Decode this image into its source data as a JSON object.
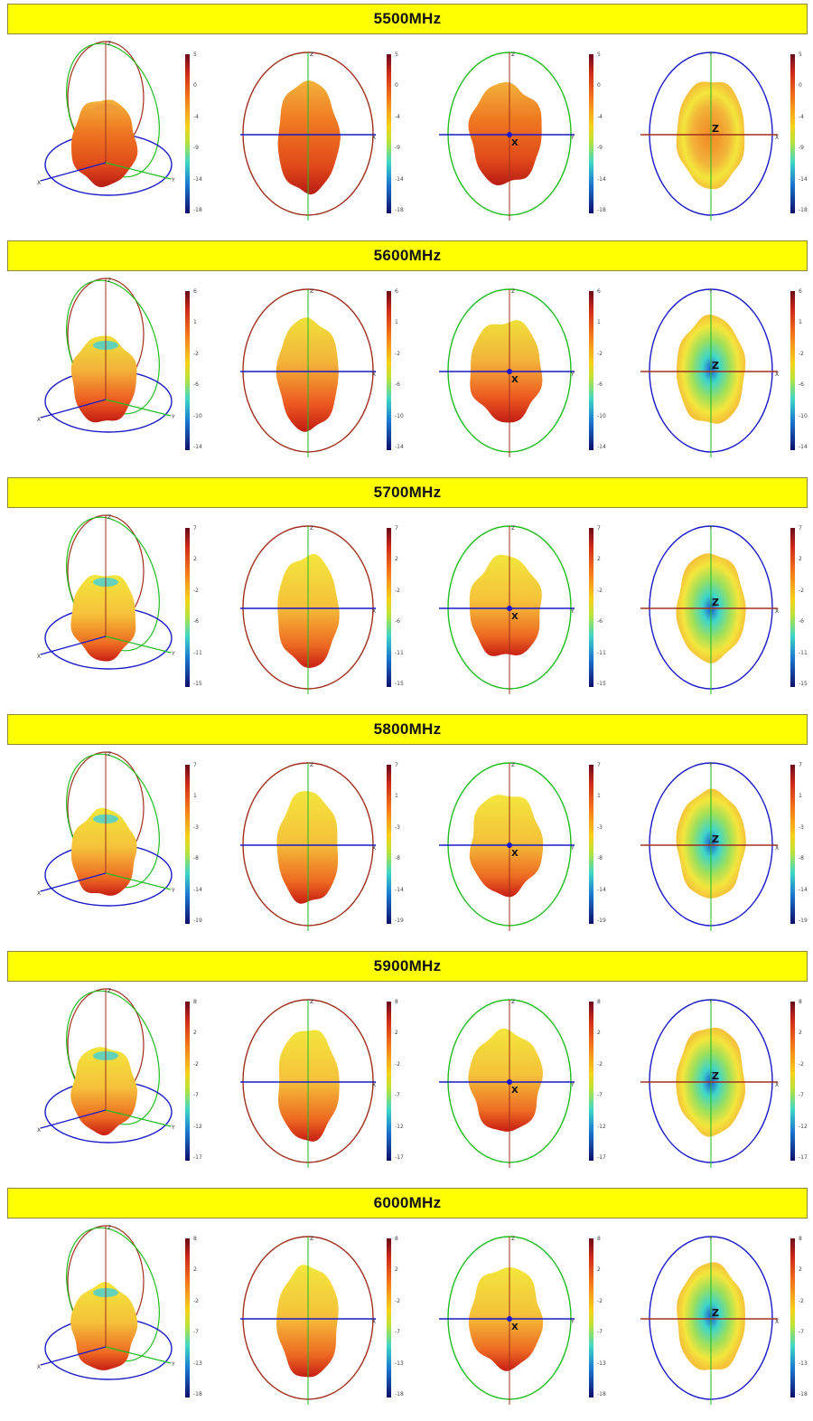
{
  "colors": {
    "header_bg": "#ffff00",
    "axis_x": "#1a1ac8",
    "axis_y": "#22bb22",
    "axis_z": "#a0301e"
  },
  "panel_types": [
    "3d-view",
    "front-view-zx",
    "side-view-zy",
    "top-view-xy"
  ],
  "bands": [
    {
      "title": "5500MHz",
      "ticks": [
        "5",
        "0",
        "-4",
        "-9",
        "-14",
        "-18"
      ],
      "theme": "orange"
    },
    {
      "title": "5600MHz",
      "ticks": [
        "6",
        "1",
        "-2",
        "-6",
        "-10",
        "-14"
      ],
      "theme": "mix"
    },
    {
      "title": "5700MHz",
      "ticks": [
        "7",
        "2",
        "-2",
        "-6",
        "-11",
        "-15"
      ],
      "theme": "yellow"
    },
    {
      "title": "5800MHz",
      "ticks": [
        "7",
        "1",
        "-3",
        "-8",
        "-14",
        "-19"
      ],
      "theme": "yellow"
    },
    {
      "title": "5900MHz",
      "ticks": [
        "8",
        "2",
        "-2",
        "-7",
        "-12",
        "-17"
      ],
      "theme": "yellow"
    },
    {
      "title": "6000MHz",
      "ticks": [
        "8",
        "2",
        "-2",
        "-7",
        "-13",
        "-18"
      ],
      "theme": "yellow"
    }
  ],
  "axis_labels": {
    "x": "X",
    "y": "Y",
    "z": "Z"
  }
}
